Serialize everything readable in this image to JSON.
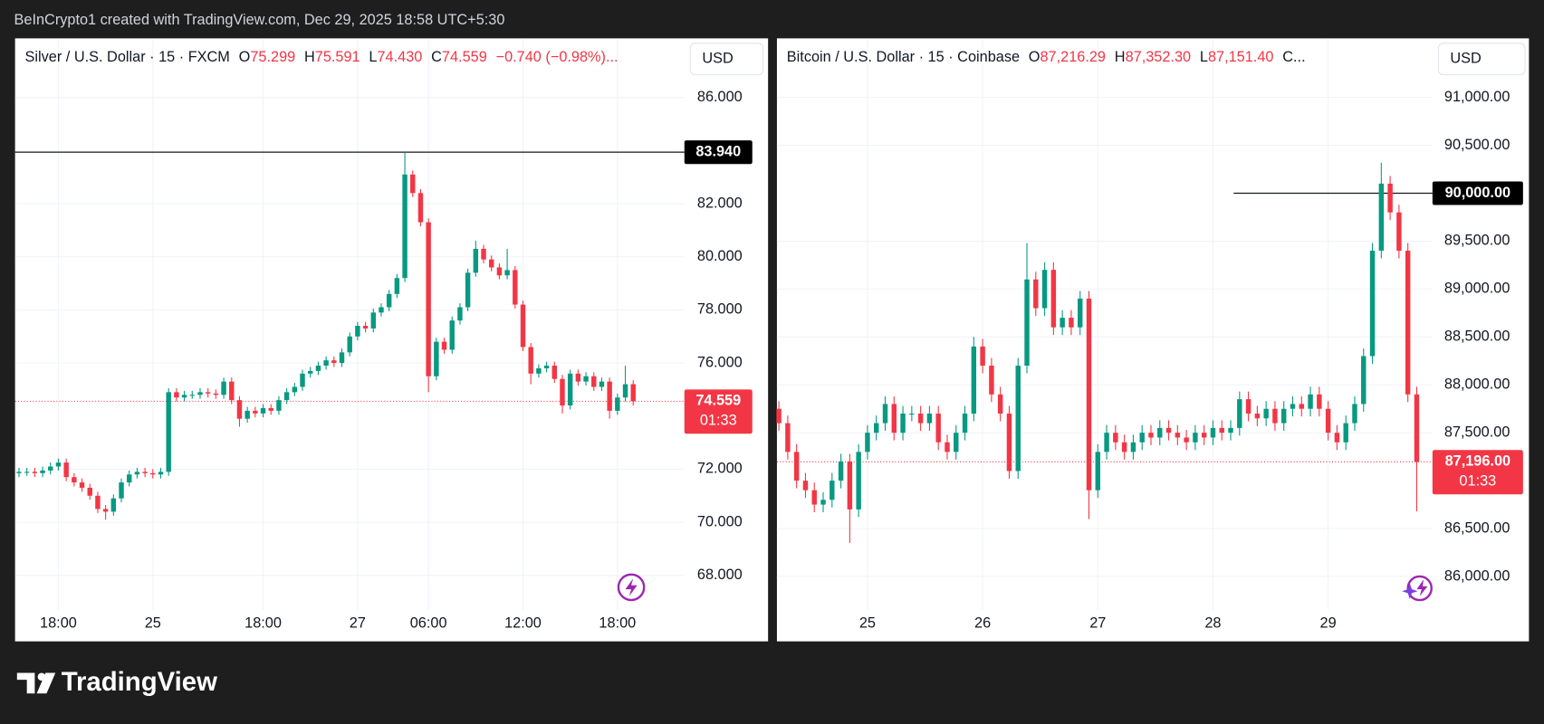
{
  "header": "BeInCrypto1 created with TradingView.com, Dec 29, 2025 18:58 UTC+5:30",
  "logo": "TradingView",
  "chart_data": [
    {
      "type": "candlestick",
      "legend": {
        "symbol": "Silver / U.S. Dollar · 15 · FXCM",
        "fields": [
          {
            "key": "O",
            "value": "75.299"
          },
          {
            "key": "H",
            "value": "75.591"
          },
          {
            "key": "L",
            "value": "74.430"
          },
          {
            "key": "C",
            "value": "74.559"
          }
        ],
        "tail": "−0.740 (−0.98%)...",
        "tail_color": "#f23645"
      },
      "currency": "USD",
      "up_color": "#089981",
      "down_color": "#f23645",
      "categories": [
        null,
        null,
        null,
        null,
        null,
        "18:00",
        null,
        null,
        null,
        null,
        null,
        null,
        null,
        null,
        null,
        null,
        null,
        "25",
        null,
        null,
        null,
        null,
        null,
        null,
        null,
        null,
        null,
        null,
        null,
        null,
        null,
        "18:00",
        null,
        null,
        null,
        null,
        null,
        null,
        null,
        null,
        null,
        null,
        null,
        "27",
        null,
        null,
        null,
        null,
        null,
        null,
        null,
        null,
        "06:00",
        null,
        null,
        null,
        null,
        null,
        null,
        null,
        null,
        null,
        null,
        null,
        "12:00",
        null,
        null,
        null,
        null,
        null,
        null,
        null,
        null,
        null,
        null,
        null,
        "18:00",
        null,
        null
      ],
      "open": [
        71.85,
        71.9,
        71.9,
        71.85,
        71.95,
        72.1,
        72.25,
        71.7,
        71.5,
        71.3,
        71.0,
        70.5,
        70.4,
        70.9,
        71.5,
        71.8,
        71.9,
        71.85,
        71.8,
        71.9,
        74.9,
        74.7,
        74.8,
        74.8,
        74.9,
        74.85,
        74.8,
        75.3,
        74.6,
        73.9,
        74.2,
        74.1,
        74.3,
        74.2,
        74.6,
        74.9,
        75.1,
        75.6,
        75.7,
        75.9,
        76.1,
        76.0,
        76.4,
        77.0,
        77.4,
        77.3,
        77.9,
        78.1,
        78.6,
        79.2,
        83.1,
        82.4,
        81.3,
        75.5,
        76.8,
        76.5,
        77.6,
        78.1,
        79.4,
        80.3,
        79.9,
        79.6,
        79.3,
        79.5,
        78.2,
        76.6,
        75.6,
        75.8,
        75.9,
        75.4,
        74.4,
        75.6,
        75.3,
        75.5,
        75.1,
        75.3,
        74.2,
        74.7,
        75.2
      ],
      "high": [
        72.05,
        72.05,
        72.05,
        72.1,
        72.25,
        72.4,
        72.4,
        71.85,
        71.65,
        71.45,
        71.15,
        70.65,
        71.05,
        71.65,
        71.95,
        72.05,
        72.05,
        72.0,
        72.05,
        75.05,
        75.05,
        74.95,
        74.95,
        75.05,
        75.05,
        75.0,
        75.45,
        75.45,
        74.75,
        74.35,
        74.35,
        74.45,
        74.45,
        74.75,
        75.05,
        75.25,
        75.75,
        75.85,
        76.05,
        76.25,
        76.25,
        76.55,
        77.15,
        77.55,
        77.55,
        78.05,
        78.25,
        78.75,
        79.35,
        83.94,
        83.25,
        82.55,
        81.45,
        76.95,
        76.95,
        77.75,
        78.25,
        79.55,
        80.6,
        80.45,
        80.05,
        79.75,
        80.3,
        79.65,
        78.35,
        76.75,
        75.95,
        76.05,
        76.05,
        75.55,
        75.75,
        75.75,
        75.65,
        75.65,
        75.45,
        75.45,
        74.85,
        75.9,
        75.35
      ],
      "low": [
        71.7,
        71.75,
        71.7,
        71.7,
        71.8,
        71.95,
        71.55,
        71.35,
        71.15,
        70.85,
        70.35,
        70.1,
        70.25,
        70.75,
        71.35,
        71.65,
        71.7,
        71.65,
        71.65,
        71.75,
        74.55,
        74.55,
        74.65,
        74.65,
        74.7,
        74.65,
        74.65,
        74.45,
        73.6,
        73.75,
        73.95,
        73.95,
        74.05,
        74.05,
        74.45,
        74.75,
        74.95,
        75.45,
        75.55,
        75.75,
        75.85,
        75.85,
        76.25,
        76.85,
        77.15,
        77.15,
        77.75,
        77.95,
        78.45,
        79.05,
        82.25,
        81.15,
        74.9,
        75.35,
        76.35,
        76.35,
        77.45,
        77.95,
        79.25,
        79.75,
        79.45,
        79.15,
        79.15,
        78.05,
        76.45,
        75.2,
        75.45,
        75.65,
        75.25,
        74.1,
        74.25,
        75.15,
        75.15,
        74.95,
        74.95,
        73.9,
        74.05,
        74.55,
        74.4
      ],
      "close": [
        71.9,
        71.9,
        71.85,
        71.95,
        72.1,
        72.25,
        71.7,
        71.5,
        71.3,
        71.0,
        70.5,
        70.4,
        70.9,
        71.5,
        71.8,
        71.9,
        71.85,
        71.8,
        71.9,
        74.9,
        74.7,
        74.8,
        74.8,
        74.9,
        74.85,
        74.8,
        75.3,
        74.6,
        73.9,
        74.2,
        74.1,
        74.3,
        74.2,
        74.6,
        74.9,
        75.1,
        75.6,
        75.7,
        75.9,
        76.1,
        76.0,
        76.4,
        77.0,
        77.4,
        77.3,
        77.9,
        78.1,
        78.6,
        79.2,
        83.1,
        82.4,
        81.3,
        75.5,
        76.8,
        76.5,
        77.6,
        78.1,
        79.4,
        80.3,
        79.9,
        79.6,
        79.3,
        79.5,
        78.2,
        76.6,
        75.6,
        75.8,
        75.9,
        75.4,
        74.4,
        75.6,
        75.3,
        75.5,
        75.1,
        75.3,
        74.2,
        74.7,
        75.2,
        74.559
      ],
      "ylim": [
        66.7,
        88.19
      ],
      "yticks": [
        {
          "value": 68,
          "label": "68.000"
        },
        {
          "value": 70,
          "label": "70.000"
        },
        {
          "value": 72,
          "label": "72.000"
        },
        {
          "value": 76,
          "label": "76.000"
        },
        {
          "value": 78,
          "label": "78.000"
        },
        {
          "value": 80,
          "label": "80.000"
        },
        {
          "value": 82,
          "label": "82.000"
        },
        {
          "value": 86,
          "label": "86.000"
        }
      ],
      "level": {
        "value": 83.94,
        "label": "83.940"
      },
      "last": {
        "value": 74.559,
        "label": "74.559",
        "countdown": "01:33"
      },
      "grid": true
    },
    {
      "type": "candlestick",
      "legend": {
        "symbol": "Bitcoin / U.S. Dollar · 15 · Coinbase",
        "fields": [
          {
            "key": "O",
            "value": "87,216.29"
          },
          {
            "key": "H",
            "value": "87,352.30"
          },
          {
            "key": "L",
            "value": "87,151.40"
          }
        ],
        "tail": "C...",
        "tail_color": "#131722"
      },
      "currency": "USD",
      "up_color": "#089981",
      "down_color": "#f23645",
      "categories": [
        null,
        null,
        null,
        null,
        null,
        null,
        null,
        null,
        null,
        null,
        "25",
        null,
        null,
        null,
        null,
        null,
        null,
        null,
        null,
        null,
        null,
        null,
        null,
        "26",
        null,
        null,
        null,
        null,
        null,
        null,
        null,
        null,
        null,
        null,
        null,
        null,
        "27",
        null,
        null,
        null,
        null,
        null,
        null,
        null,
        null,
        null,
        null,
        null,
        null,
        "28",
        null,
        null,
        null,
        null,
        null,
        null,
        null,
        null,
        null,
        null,
        null,
        null,
        "29",
        null,
        null,
        null,
        null,
        null,
        null,
        null,
        null,
        null,
        null
      ],
      "open": [
        87750,
        87600,
        87300,
        87000,
        86900,
        86750,
        86800,
        87000,
        87200,
        86700,
        87300,
        87500,
        87600,
        87800,
        87500,
        87700,
        87700,
        87600,
        87700,
        87400,
        87300,
        87500,
        87700,
        88400,
        88200,
        87900,
        87700,
        87100,
        88200,
        89100,
        88800,
        89200,
        88600,
        88700,
        88600,
        88900,
        86900,
        87300,
        87500,
        87400,
        87300,
        87400,
        87500,
        87450,
        87550,
        87500,
        87450,
        87400,
        87500,
        87450,
        87550,
        87500,
        87550,
        87850,
        87700,
        87650,
        87750,
        87600,
        87750,
        87800,
        87750,
        87900,
        87750,
        87500,
        87400,
        87600,
        87800,
        88300,
        89400,
        90100,
        89800,
        89400,
        87900
      ],
      "high": [
        87830,
        87680,
        87380,
        87080,
        86980,
        86880,
        87080,
        87280,
        87280,
        87380,
        87580,
        87680,
        87880,
        87880,
        87780,
        87780,
        87780,
        87780,
        87780,
        87480,
        87580,
        87780,
        88500,
        88480,
        88280,
        87980,
        87780,
        88280,
        89480,
        89180,
        89280,
        89280,
        88780,
        88780,
        88980,
        88980,
        87380,
        87580,
        87580,
        87480,
        87480,
        87580,
        87580,
        87630,
        87630,
        87580,
        87530,
        87580,
        87580,
        87630,
        87630,
        87630,
        87930,
        87930,
        87780,
        87830,
        87830,
        87830,
        87880,
        87880,
        87980,
        87980,
        87830,
        87580,
        87680,
        87880,
        88380,
        89480,
        90320,
        90180,
        89880,
        89480,
        87980
      ],
      "low": [
        87520,
        87220,
        86920,
        86820,
        86670,
        86670,
        86720,
        86920,
        86350,
        86620,
        87220,
        87420,
        87520,
        87420,
        87420,
        87620,
        87520,
        87520,
        87320,
        87220,
        87220,
        87420,
        87620,
        88120,
        87820,
        87620,
        87020,
        87020,
        88120,
        88720,
        88720,
        88520,
        88520,
        88520,
        88520,
        86600,
        86820,
        87220,
        87320,
        87220,
        87220,
        87320,
        87370,
        87370,
        87420,
        87370,
        87320,
        87320,
        87370,
        87370,
        87420,
        87420,
        87470,
        87620,
        87570,
        87570,
        87520,
        87520,
        87670,
        87670,
        87670,
        87670,
        87420,
        87320,
        87320,
        87520,
        87720,
        88220,
        89320,
        89720,
        89320,
        87820,
        86680
      ],
      "close": [
        87600,
        87300,
        87000,
        86900,
        86750,
        86800,
        87000,
        87200,
        86700,
        87300,
        87500,
        87600,
        87800,
        87500,
        87700,
        87700,
        87600,
        87700,
        87400,
        87300,
        87500,
        87700,
        88400,
        88200,
        87900,
        87700,
        87100,
        88200,
        89100,
        88800,
        89200,
        88600,
        88700,
        88600,
        88900,
        86900,
        87300,
        87500,
        87400,
        87300,
        87400,
        87500,
        87450,
        87550,
        87500,
        87450,
        87400,
        87500,
        87450,
        87550,
        87500,
        87550,
        87850,
        87700,
        87650,
        87750,
        87600,
        87750,
        87800,
        87750,
        87900,
        87750,
        87500,
        87400,
        87600,
        87800,
        88300,
        89400,
        90100,
        89800,
        89400,
        87900,
        87196
      ],
      "ylim": [
        85651,
        91606
      ],
      "yticks": [
        {
          "value": 86000,
          "label": "86,000.00"
        },
        {
          "value": 86500,
          "label": "86,500.00"
        },
        {
          "value": 87500,
          "label": "87,500.00"
        },
        {
          "value": 88000,
          "label": "88,000.00"
        },
        {
          "value": 88500,
          "label": "88,500.00"
        },
        {
          "value": 89000,
          "label": "89,000.00"
        },
        {
          "value": 89500,
          "label": "89,500.00"
        },
        {
          "value": 90500,
          "label": "90,500.00"
        },
        {
          "value": 91000,
          "label": "91,000.00"
        }
      ],
      "level": {
        "value": 90000,
        "label": "90,000.00"
      },
      "last": {
        "value": 87196,
        "label": "87,196.00",
        "countdown": "01:33"
      },
      "grid": true
    }
  ]
}
